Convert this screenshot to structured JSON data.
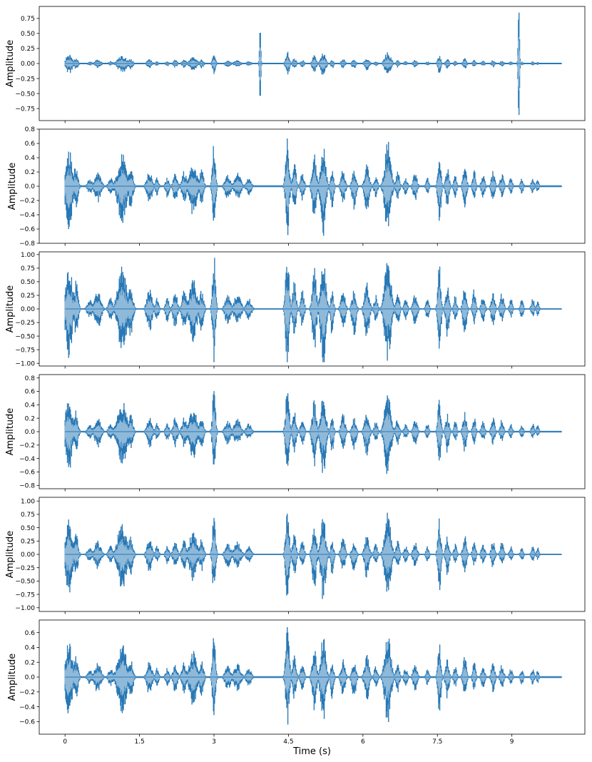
{
  "chart_data": [
    {
      "type": "area",
      "ylabel": "Amplitude",
      "ylim": [
        -0.95,
        0.95
      ],
      "yticks": [
        -0.75,
        -0.5,
        -0.25,
        0.0,
        0.25,
        0.5,
        0.75
      ],
      "ytick_labels": [
        "−0.75",
        "−0.50",
        "−0.25",
        "0.00",
        "0.25",
        "0.50",
        "0.75"
      ],
      "scale": 0.3,
      "spikes": [
        {
          "t": 3.93,
          "up": 0.57,
          "down": -0.6
        },
        {
          "t": 9.14,
          "up": 0.89,
          "down": -0.9
        }
      ]
    },
    {
      "type": "area",
      "ylabel": "Amplitude",
      "ylim": [
        -0.8,
        0.8
      ],
      "yticks": [
        -0.8,
        -0.6,
        -0.4,
        -0.2,
        0.0,
        0.2,
        0.4,
        0.6,
        0.8
      ],
      "ytick_labels": [
        "−0.8",
        "−0.6",
        "−0.4",
        "−0.2",
        "0.0",
        "0.2",
        "0.4",
        "0.6",
        "0.8"
      ],
      "scale": 1.0,
      "spikes": []
    },
    {
      "type": "area",
      "ylabel": "Amplitude",
      "ylim": [
        -1.05,
        1.05
      ],
      "yticks": [
        -1.0,
        -0.75,
        -0.5,
        -0.25,
        0.0,
        0.25,
        0.5,
        0.75,
        1.0
      ],
      "ytick_labels": [
        "−1.00",
        "−0.75",
        "−0.50",
        "−0.25",
        "0.00",
        "0.25",
        "0.50",
        "0.75",
        "1.00"
      ],
      "scale": 1.6,
      "clip": 0.98,
      "spikes": []
    },
    {
      "type": "area",
      "ylabel": "Amplitude",
      "ylim": [
        -0.85,
        0.85
      ],
      "yticks": [
        -0.8,
        -0.6,
        -0.4,
        -0.2,
        0.0,
        0.2,
        0.4,
        0.6,
        0.8
      ],
      "ytick_labels": [
        "−0.8",
        "−0.6",
        "−0.4",
        "−0.2",
        "0.0",
        "0.2",
        "0.4",
        "0.6",
        "0.8"
      ],
      "scale": 1.0,
      "spikes": []
    },
    {
      "type": "area",
      "ylabel": "Amplitude",
      "ylim": [
        -1.07,
        1.07
      ],
      "yticks": [
        -1.0,
        -0.75,
        -0.5,
        -0.25,
        0.0,
        0.25,
        0.5,
        0.75,
        1.0
      ],
      "ytick_labels": [
        "−1.00",
        "−0.75",
        "−0.50",
        "−0.25",
        "0.00",
        "0.25",
        "0.50",
        "0.75",
        "1.00"
      ],
      "scale": 1.25,
      "spikes": []
    },
    {
      "type": "area",
      "ylabel": "Amplitude",
      "ylim": [
        -0.77,
        0.77
      ],
      "yticks": [
        -0.6,
        -0.4,
        -0.2,
        0.0,
        0.2,
        0.4,
        0.6
      ],
      "ytick_labels": [
        "−0.6",
        "−0.4",
        "−0.2",
        "0.0",
        "0.2",
        "0.4",
        "0.6"
      ],
      "scale": 0.95,
      "spikes": []
    }
  ],
  "shared": {
    "xlabel": "Time (s)",
    "xlim": [
      -0.52,
      10.47
    ],
    "xticks": [
      0,
      1.5,
      3,
      4.5,
      6,
      7.5,
      9
    ],
    "xtick_labels": [
      "0",
      "1.5",
      "3",
      "4.5",
      "6",
      "7.5",
      "9"
    ],
    "duration_s": 10.0,
    "colors": {
      "envelope": "#2878b5",
      "rms": "#8fb9d9",
      "axes": "#000000"
    },
    "syllables": [
      {
        "t": 0.08,
        "w": 0.13,
        "up": 0.5,
        "down": -0.55
      },
      {
        "t": 0.22,
        "w": 0.08,
        "up": 0.3,
        "down": -0.3
      },
      {
        "t": 0.5,
        "w": 0.1,
        "up": 0.1,
        "down": -0.1
      },
      {
        "t": 0.66,
        "w": 0.12,
        "up": 0.2,
        "down": -0.22
      },
      {
        "t": 0.92,
        "w": 0.09,
        "up": 0.12,
        "down": -0.12
      },
      {
        "t": 1.15,
        "w": 0.17,
        "up": 0.45,
        "down": -0.5
      },
      {
        "t": 1.32,
        "w": 0.09,
        "up": 0.25,
        "down": -0.3
      },
      {
        "t": 1.7,
        "w": 0.1,
        "up": 0.22,
        "down": -0.25
      },
      {
        "t": 1.85,
        "w": 0.07,
        "up": 0.12,
        "down": -0.12
      },
      {
        "t": 2.06,
        "w": 0.07,
        "up": 0.12,
        "down": -0.15
      },
      {
        "t": 2.22,
        "w": 0.08,
        "up": 0.2,
        "down": -0.22
      },
      {
        "t": 2.4,
        "w": 0.09,
        "up": 0.2,
        "down": -0.22
      },
      {
        "t": 2.58,
        "w": 0.14,
        "up": 0.35,
        "down": -0.38
      },
      {
        "t": 2.75,
        "w": 0.08,
        "up": 0.22,
        "down": -0.25
      },
      {
        "t": 3.0,
        "w": 0.06,
        "up": 0.6,
        "down": -0.6
      },
      {
        "t": 3.28,
        "w": 0.11,
        "up": 0.15,
        "down": -0.18
      },
      {
        "t": 3.47,
        "w": 0.13,
        "up": 0.18,
        "down": -0.18
      },
      {
        "t": 3.7,
        "w": 0.1,
        "up": 0.12,
        "down": -0.12
      },
      {
        "t": 4.48,
        "w": 0.07,
        "up": 0.65,
        "down": -0.65
      },
      {
        "t": 4.62,
        "w": 0.07,
        "up": 0.3,
        "down": -0.3
      },
      {
        "t": 4.78,
        "w": 0.07,
        "up": 0.2,
        "down": -0.2
      },
      {
        "t": 5.02,
        "w": 0.08,
        "up": 0.45,
        "down": -0.5
      },
      {
        "t": 5.2,
        "w": 0.1,
        "up": 0.55,
        "down": -0.65
      },
      {
        "t": 5.38,
        "w": 0.06,
        "up": 0.2,
        "down": -0.3
      },
      {
        "t": 5.6,
        "w": 0.08,
        "up": 0.25,
        "down": -0.25
      },
      {
        "t": 5.82,
        "w": 0.08,
        "up": 0.2,
        "down": -0.3
      },
      {
        "t": 6.08,
        "w": 0.09,
        "up": 0.3,
        "down": -0.35
      },
      {
        "t": 6.26,
        "w": 0.07,
        "up": 0.15,
        "down": -0.15
      },
      {
        "t": 6.5,
        "w": 0.12,
        "up": 0.6,
        "down": -0.62
      },
      {
        "t": 6.7,
        "w": 0.07,
        "up": 0.2,
        "down": -0.2
      },
      {
        "t": 6.86,
        "w": 0.07,
        "up": 0.12,
        "down": -0.12
      },
      {
        "t": 7.05,
        "w": 0.08,
        "up": 0.18,
        "down": -0.2
      },
      {
        "t": 7.3,
        "w": 0.06,
        "up": 0.12,
        "down": -0.12
      },
      {
        "t": 7.54,
        "w": 0.06,
        "up": 0.5,
        "down": -0.55
      },
      {
        "t": 7.7,
        "w": 0.07,
        "up": 0.25,
        "down": -0.3
      },
      {
        "t": 7.86,
        "w": 0.06,
        "up": 0.15,
        "down": -0.15
      },
      {
        "t": 8.05,
        "w": 0.07,
        "up": 0.28,
        "down": -0.3
      },
      {
        "t": 8.24,
        "w": 0.06,
        "up": 0.22,
        "down": -0.18
      },
      {
        "t": 8.42,
        "w": 0.07,
        "up": 0.15,
        "down": -0.15
      },
      {
        "t": 8.62,
        "w": 0.07,
        "up": 0.2,
        "down": -0.2
      },
      {
        "t": 8.8,
        "w": 0.07,
        "up": 0.18,
        "down": -0.15
      },
      {
        "t": 8.98,
        "w": 0.06,
        "up": 0.12,
        "down": -0.1
      },
      {
        "t": 9.2,
        "w": 0.06,
        "up": 0.1,
        "down": -0.1
      },
      {
        "t": 9.42,
        "w": 0.06,
        "up": 0.12,
        "down": -0.1
      },
      {
        "t": 9.52,
        "w": 0.05,
        "up": 0.1,
        "down": -0.08
      }
    ]
  }
}
